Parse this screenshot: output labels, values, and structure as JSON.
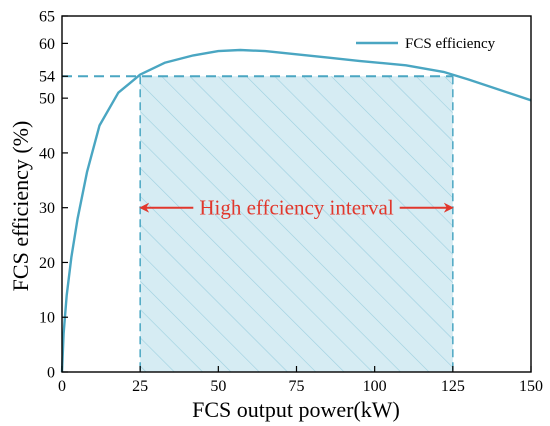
{
  "chart_data": {
    "type": "line",
    "xlabel": "FCS output power(kW)",
    "ylabel": "FCS efficiency (%)",
    "xlim": [
      0,
      150
    ],
    "ylim": [
      0,
      65
    ],
    "xticks": [
      0,
      25,
      50,
      75,
      100,
      125,
      150
    ],
    "yticks": [
      0,
      10,
      20,
      30,
      40,
      50,
      54,
      60,
      65
    ],
    "grid": false,
    "legend_position": "top-right",
    "series": [
      {
        "name": "FCS efficiency",
        "color": "#4aa6c2",
        "x": [
          0,
          0.5,
          1.5,
          3,
          5,
          8,
          12,
          18,
          25,
          33,
          42,
          50,
          57,
          65,
          75,
          85,
          95,
          110,
          122,
          130,
          140,
          150
        ],
        "y": [
          0,
          7,
          14,
          21,
          28,
          36.5,
          45,
          51,
          54.3,
          56.5,
          57.8,
          58.6,
          58.8,
          58.6,
          58.0,
          57.4,
          56.8,
          56.0,
          54.8,
          53.4,
          51.5,
          49.6
        ]
      }
    ],
    "reference_line": {
      "y": 54,
      "x_from": 0,
      "x_to": 125,
      "style": "dashed",
      "color": "#4aa6c2"
    },
    "shaded_region": {
      "x_from": 25,
      "x_to": 125,
      "y_from": 0,
      "y_to": 54,
      "fill": "#d6ecf3",
      "hatch_color": "#9ccfdf"
    },
    "annotation": {
      "text": "High effciency interval",
      "x_from": 25,
      "x_to": 125,
      "y": 30,
      "color": "#e1372c"
    }
  }
}
